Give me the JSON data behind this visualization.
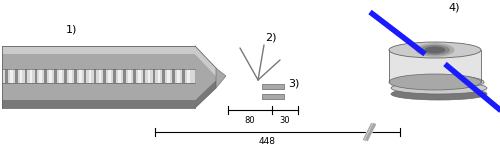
{
  "fig_width": 5.0,
  "fig_height": 1.52,
  "dpi": 100,
  "bg_color": "#ffffff",
  "label_1": "1)",
  "label_2": "2)",
  "label_3": "3)",
  "label_4": "4)",
  "dim_80": "80",
  "dim_30": "30",
  "dim_448": "448",
  "gray_light": "#cbcbcb",
  "gray_mid": "#a8a8a8",
  "gray_dark": "#787878",
  "gray_darker": "#585858",
  "gray_ridge_dark": "#888888",
  "gray_ridge_light": "#f0f0f0",
  "blue_color": "#1a1aff",
  "white_ish": "#e4e4e4",
  "stroke_color": "#666666"
}
